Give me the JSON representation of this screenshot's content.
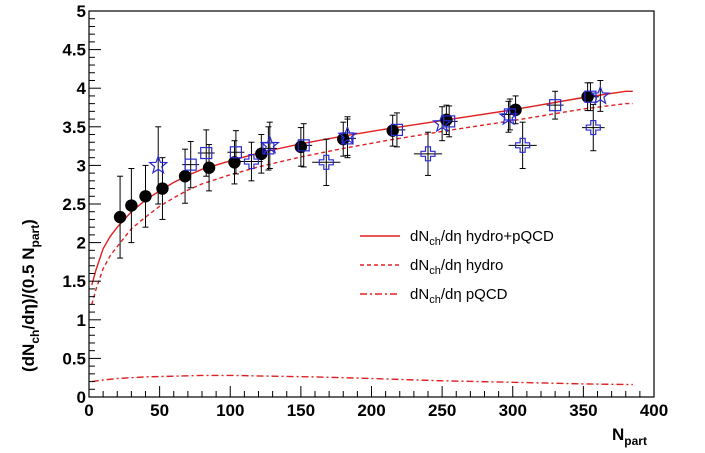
{
  "chart_data": {
    "type": "scatter",
    "x_axis": {
      "label": "N",
      "label_sub": "part",
      "range": [
        0,
        400
      ],
      "ticks": [
        "0",
        "50",
        "100",
        "150",
        "200",
        "250",
        "300",
        "350",
        "400"
      ]
    },
    "y_axis": {
      "label_parts": [
        "(dN",
        "ch",
        "/dη)/(0.5 N",
        "part",
        ")"
      ],
      "range": [
        0,
        5
      ],
      "ticks": [
        "0",
        "0.5",
        "1",
        "1.5",
        "2",
        "2.5",
        "3",
        "3.5",
        "4",
        "4.5",
        "5"
      ]
    },
    "grid": false,
    "legend_position": "right",
    "series": [
      {
        "marker": "filled-circle",
        "color": "#000000",
        "points": [
          {
            "x": 22,
            "y": 2.33,
            "yerr": 0.53,
            "xerr": 0
          },
          {
            "x": 30,
            "y": 2.48,
            "yerr": 0.48,
            "xerr": 0
          },
          {
            "x": 40,
            "y": 2.6,
            "yerr": 0.4,
            "xerr": 0
          },
          {
            "x": 52,
            "y": 2.7,
            "yerr": 0.4,
            "xerr": 0
          },
          {
            "x": 68,
            "y": 2.86,
            "yerr": 0.35,
            "xerr": 0
          },
          {
            "x": 85,
            "y": 2.97,
            "yerr": 0.3,
            "xerr": 0
          },
          {
            "x": 103,
            "y": 3.04,
            "yerr": 0.28,
            "xerr": 0
          },
          {
            "x": 122,
            "y": 3.15,
            "yerr": 0.25,
            "xerr": 0
          },
          {
            "x": 150,
            "y": 3.24,
            "yerr": 0.25,
            "xerr": 0
          },
          {
            "x": 180,
            "y": 3.34,
            "yerr": 0.22,
            "xerr": 0
          },
          {
            "x": 215,
            "y": 3.45,
            "yerr": 0.2,
            "xerr": 0
          },
          {
            "x": 253,
            "y": 3.59,
            "yerr": 0.19,
            "xerr": 0
          },
          {
            "x": 302,
            "y": 3.72,
            "yerr": 0.18,
            "xerr": 0
          },
          {
            "x": 353,
            "y": 3.89,
            "yerr": 0.18,
            "xerr": 0
          }
        ]
      },
      {
        "marker": "open-square",
        "color": "#2a2ad0",
        "points": [
          {
            "x": 72,
            "y": 3.01,
            "yerr": 0.3,
            "xerr": 6
          },
          {
            "x": 83,
            "y": 3.16,
            "yerr": 0.3,
            "xerr": 6
          },
          {
            "x": 104,
            "y": 3.17,
            "yerr": 0.28,
            "xerr": 6
          },
          {
            "x": 127,
            "y": 3.22,
            "yerr": 0.28,
            "xerr": 6
          },
          {
            "x": 152,
            "y": 3.26,
            "yerr": 0.28,
            "xerr": 6
          },
          {
            "x": 183,
            "y": 3.35,
            "yerr": 0.25,
            "xerr": 6
          },
          {
            "x": 218,
            "y": 3.46,
            "yerr": 0.22,
            "xerr": 6
          },
          {
            "x": 255,
            "y": 3.57,
            "yerr": 0.2,
            "xerr": 6
          },
          {
            "x": 298,
            "y": 3.66,
            "yerr": 0.2,
            "xerr": 6
          },
          {
            "x": 330,
            "y": 3.78,
            "yerr": 0.18,
            "xerr": 6
          },
          {
            "x": 355,
            "y": 3.89,
            "yerr": 0.18,
            "xerr": 6
          }
        ]
      },
      {
        "marker": "open-cross",
        "color": "#2a2ad0",
        "points": [
          {
            "x": 115,
            "y": 3.05,
            "yerr": 0.25,
            "xerr": 8
          },
          {
            "x": 168,
            "y": 3.04,
            "yerr": 0.3,
            "xerr": 10
          },
          {
            "x": 240,
            "y": 3.15,
            "yerr": 0.28,
            "xerr": 10
          },
          {
            "x": 307,
            "y": 3.26,
            "yerr": 0.3,
            "xerr": 10
          },
          {
            "x": 357,
            "y": 3.49,
            "yerr": 0.3,
            "xerr": 8
          }
        ]
      },
      {
        "marker": "open-star",
        "color": "#2a2ad0",
        "points": [
          {
            "x": 49,
            "y": 3.0,
            "yerr": 0.5,
            "xerr": 0
          },
          {
            "x": 128,
            "y": 3.26,
            "yerr": 0.3,
            "xerr": 0
          },
          {
            "x": 183,
            "y": 3.38,
            "yerr": 0.25,
            "xerr": 0
          },
          {
            "x": 250,
            "y": 3.54,
            "yerr": 0.22,
            "xerr": 0
          },
          {
            "x": 297,
            "y": 3.63,
            "yerr": 0.2,
            "xerr": 0
          },
          {
            "x": 362,
            "y": 3.9,
            "yerr": 0.2,
            "xerr": 0
          }
        ]
      }
    ],
    "curves": [
      {
        "name_parts": [
          "dN",
          "ch",
          "/dη hydro+pQCD"
        ],
        "style": "solid",
        "color": "#e02020",
        "x": [
          2,
          5,
          10,
          15,
          20,
          30,
          40,
          50,
          60,
          70,
          80,
          100,
          120,
          150,
          180,
          210,
          250,
          300,
          350,
          380,
          385
        ],
        "y": [
          1.45,
          1.65,
          1.92,
          2.08,
          2.2,
          2.4,
          2.55,
          2.67,
          2.78,
          2.87,
          2.95,
          3.06,
          3.16,
          3.28,
          3.38,
          3.47,
          3.58,
          3.72,
          3.88,
          3.96,
          3.96
        ]
      },
      {
        "name_parts": [
          "dN",
          "ch",
          "/dη hydro"
        ],
        "style": "dashed",
        "color": "#e02020",
        "x": [
          2,
          5,
          10,
          15,
          20,
          30,
          40,
          50,
          60,
          70,
          80,
          100,
          120,
          150,
          180,
          210,
          250,
          300,
          350,
          380,
          385
        ],
        "y": [
          1.2,
          1.4,
          1.66,
          1.83,
          1.95,
          2.18,
          2.33,
          2.47,
          2.58,
          2.68,
          2.76,
          2.88,
          2.98,
          3.11,
          3.22,
          3.32,
          3.44,
          3.58,
          3.73,
          3.8,
          3.8
        ]
      },
      {
        "name_parts": [
          "dN",
          "ch",
          "/dη pQCD"
        ],
        "style": "dashdot",
        "color": "#e02020",
        "x": [
          2,
          10,
          20,
          40,
          60,
          80,
          100,
          130,
          160,
          200,
          250,
          300,
          350,
          385
        ],
        "y": [
          0.2,
          0.22,
          0.24,
          0.26,
          0.27,
          0.28,
          0.28,
          0.27,
          0.26,
          0.24,
          0.21,
          0.19,
          0.17,
          0.16
        ]
      }
    ]
  }
}
